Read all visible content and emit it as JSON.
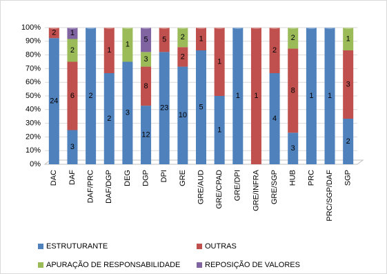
{
  "chart_data": {
    "type": "bar",
    "stacking": "percent",
    "categories": [
      "DAC",
      "DAF",
      "DAF/PRC",
      "DAF/DGP",
      "DEG",
      "DGP",
      "DPI",
      "GRE",
      "GRE/AUD",
      "GRE/CPAD",
      "GRE/DPI",
      "GRE/INFRA",
      "GRE/SGP",
      "HUB",
      "PRC",
      "PRC/SGP/DAF",
      "SGP"
    ],
    "series": [
      {
        "name": "ESTRUTURANTE",
        "color": "#4f81bd",
        "values": [
          24,
          3,
          2,
          2,
          3,
          12,
          23,
          10,
          5,
          1,
          1,
          null,
          4,
          3,
          1,
          1,
          2
        ]
      },
      {
        "name": "OUTRAS",
        "color": "#c0504d",
        "values": [
          2,
          6,
          null,
          1,
          null,
          8,
          5,
          2,
          1,
          1,
          null,
          1,
          2,
          8,
          null,
          null,
          3
        ]
      },
      {
        "name": "APURAÇÃO DE RESPONSABILIDADE",
        "color": "#9bbb59",
        "values": [
          null,
          2,
          null,
          null,
          1,
          3,
          null,
          2,
          null,
          null,
          null,
          null,
          null,
          2,
          null,
          null,
          1
        ]
      },
      {
        "name": "REPOSIÇÃO DE VALORES",
        "color": "#8064a2",
        "values": [
          null,
          1,
          null,
          null,
          null,
          5,
          null,
          null,
          null,
          null,
          null,
          null,
          null,
          null,
          null,
          null,
          null
        ]
      }
    ],
    "ylim": [
      0,
      100
    ],
    "yticks": [
      {
        "value": 0,
        "label": "0%"
      },
      {
        "value": 10,
        "label": "10%"
      },
      {
        "value": 20,
        "label": "20%"
      },
      {
        "value": 30,
        "label": "30%"
      },
      {
        "value": 40,
        "label": "40%"
      },
      {
        "value": 50,
        "label": "50%"
      },
      {
        "value": 60,
        "label": "60%"
      },
      {
        "value": 70,
        "label": "70%"
      },
      {
        "value": 80,
        "label": "80%"
      },
      {
        "value": 90,
        "label": "90%"
      },
      {
        "value": 100,
        "label": "100%"
      }
    ],
    "grid": true,
    "legend": "bottom"
  }
}
